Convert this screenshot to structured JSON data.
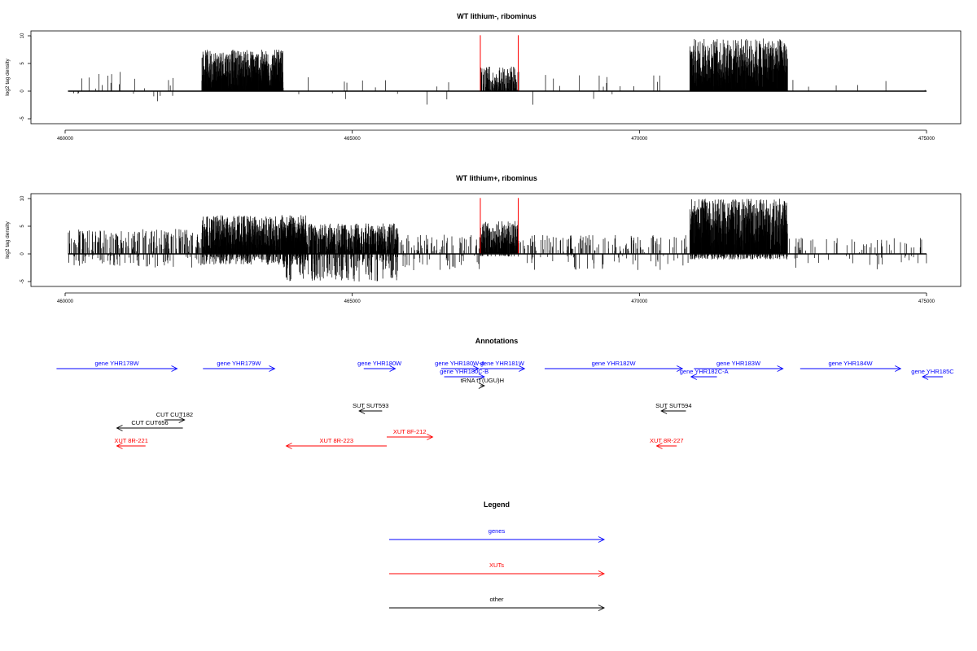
{
  "chart_data": [
    {
      "type": "bar",
      "title": "WT lithium-, ribominus",
      "xlabel": "",
      "ylabel": "log2 tag density",
      "xlim": [
        459900,
        475100
      ],
      "ylim": [
        -5,
        10
      ],
      "xticks": [
        "460000",
        "465000",
        "470000",
        "475000"
      ],
      "yticks": [
        "-5",
        "0",
        "5",
        "10"
      ],
      "red_markers_x": [
        467230,
        467890
      ],
      "marker_color": "#ff0000",
      "bar_color": "#000000",
      "series": [
        {
          "regions": [
            {
              "start": 460050,
              "end": 461950,
              "pos_max": 3.6,
              "neg_min": -2.0,
              "density": 0.03
            },
            {
              "start": 462380,
              "end": 463800,
              "pos_max": 7.5,
              "neg_min": 0,
              "density": 1.0
            },
            {
              "start": 463800,
              "end": 466900,
              "pos_max": 2.8,
              "neg_min": -2.6,
              "density": 0.01
            },
            {
              "start": 467230,
              "end": 467900,
              "pos_max": 4.5,
              "neg_min": 0,
              "density": 0.55
            },
            {
              "start": 467900,
              "end": 470900,
              "pos_max": 3.0,
              "neg_min": -2.6,
              "density": 0.01
            },
            {
              "start": 470880,
              "end": 472580,
              "pos_max": 9.5,
              "neg_min": 0,
              "density": 1.0
            },
            {
              "start": 472580,
              "end": 475000,
              "pos_max": 2.4,
              "neg_min": 0,
              "density": 0.004
            }
          ]
        }
      ]
    },
    {
      "type": "bar",
      "title": "WT lithium+, ribominus",
      "xlabel": "",
      "ylabel": "log2 tag density",
      "xlim": [
        459900,
        475100
      ],
      "ylim": [
        -5,
        10
      ],
      "xticks": [
        "460000",
        "465000",
        "470000",
        "475000"
      ],
      "yticks": [
        "-5",
        "0",
        "5",
        "10"
      ],
      "red_markers_x": [
        467230,
        467890
      ],
      "marker_color": "#ff0000",
      "bar_color": "#000000",
      "series": [
        {
          "regions": [
            {
              "start": 460050,
              "end": 462380,
              "pos_max": 4.5,
              "neg_min": -2.5,
              "density": 0.25
            },
            {
              "start": 462380,
              "end": 464200,
              "pos_max": 7.0,
              "neg_min": -2.0,
              "density": 1.0
            },
            {
              "start": 463800,
              "end": 465800,
              "pos_max": 5.5,
              "neg_min": -5.0,
              "density": 0.8
            },
            {
              "start": 465800,
              "end": 467230,
              "pos_max": 3.5,
              "neg_min": -3.0,
              "density": 0.15
            },
            {
              "start": 467230,
              "end": 467900,
              "pos_max": 6.0,
              "neg_min": -0.5,
              "density": 0.9
            },
            {
              "start": 467900,
              "end": 470880,
              "pos_max": 3.5,
              "neg_min": -3.0,
              "density": 0.12
            },
            {
              "start": 470880,
              "end": 472580,
              "pos_max": 10.0,
              "neg_min": -1.0,
              "density": 1.0
            },
            {
              "start": 472580,
              "end": 475000,
              "pos_max": 3.0,
              "neg_min": -2.8,
              "density": 0.06
            }
          ]
        }
      ]
    }
  ],
  "annotations": {
    "title": "Annotations",
    "items": [
      {
        "label": "gene YHR178W",
        "start": 459850,
        "end": 461950,
        "dir": "right",
        "color": "#0000ff",
        "row": 0
      },
      {
        "label": "gene YHR179W",
        "start": 462400,
        "end": 463650,
        "dir": "right",
        "color": "#0000ff",
        "row": 0
      },
      {
        "label": "gene YHR180W",
        "start": 465200,
        "end": 465750,
        "dir": "right",
        "color": "#0000ff",
        "row": 0
      },
      {
        "label": "gene YHR180W-A",
        "start": 466550,
        "end": 467200,
        "dir": "right",
        "color": "#0000ff",
        "row": 0
      },
      {
        "label": "gene YHR181W",
        "start": 467220,
        "end": 468000,
        "dir": "right",
        "color": "#0000ff",
        "row": 0
      },
      {
        "label": "gene YHR182W",
        "start": 468350,
        "end": 470750,
        "dir": "right",
        "color": "#0000ff",
        "row": 0
      },
      {
        "label": "gene YHR183W",
        "start": 470950,
        "end": 472500,
        "dir": "right",
        "color": "#0000ff",
        "row": 0
      },
      {
        "label": "gene YHR184W",
        "start": 472800,
        "end": 474550,
        "dir": "right",
        "color": "#0000ff",
        "row": 0
      },
      {
        "label": "gene YHR180C-B",
        "start": 466600,
        "end": 467300,
        "dir": "right",
        "color": "#0000ff",
        "row": 1
      },
      {
        "label": "gene YHR182C-A",
        "start": 470900,
        "end": 471350,
        "dir": "left",
        "color": "#0000ff",
        "row": 1
      },
      {
        "label": "gene YHR185C",
        "start": 474930,
        "end": 475700,
        "dir": "left",
        "color": "#0000ff",
        "row": 1
      },
      {
        "label": "tRNA tT(UGU)H",
        "start": 467230,
        "end": 467300,
        "dir": "right",
        "color": "#000000",
        "row": 2
      },
      {
        "label": "SUT SUT593",
        "start": 465120,
        "end": 465520,
        "dir": "left",
        "color": "#000000",
        "row": 4
      },
      {
        "label": "SUT SUT594",
        "start": 470380,
        "end": 470810,
        "dir": "left",
        "color": "#000000",
        "row": 4
      },
      {
        "label": "CUT CUT182",
        "start": 461730,
        "end": 462080,
        "dir": "right",
        "color": "#000000",
        "row": 5
      },
      {
        "label": "CUT CUT656",
        "start": 460900,
        "end": 462050,
        "dir": "left",
        "color": "#000000",
        "row": 6
      },
      {
        "label": "XUT 8F-212",
        "start": 465600,
        "end": 466400,
        "dir": "right",
        "color": "#ff0000",
        "row": 7
      },
      {
        "label": "XUT 8R-221",
        "start": 460900,
        "end": 461400,
        "dir": "left",
        "color": "#ff0000",
        "row": 8
      },
      {
        "label": "XUT 8R-223",
        "start": 463850,
        "end": 465600,
        "dir": "left",
        "color": "#ff0000",
        "row": 8
      },
      {
        "label": "XUT 8R-227",
        "start": 470300,
        "end": 470650,
        "dir": "left",
        "color": "#ff0000",
        "row": 8
      }
    ]
  },
  "legend": {
    "title": "Legend",
    "items": [
      {
        "label": "genes",
        "color": "#0000ff"
      },
      {
        "label": "XUTs",
        "color": "#ff0000"
      },
      {
        "label": "other",
        "color": "#000000"
      }
    ]
  }
}
